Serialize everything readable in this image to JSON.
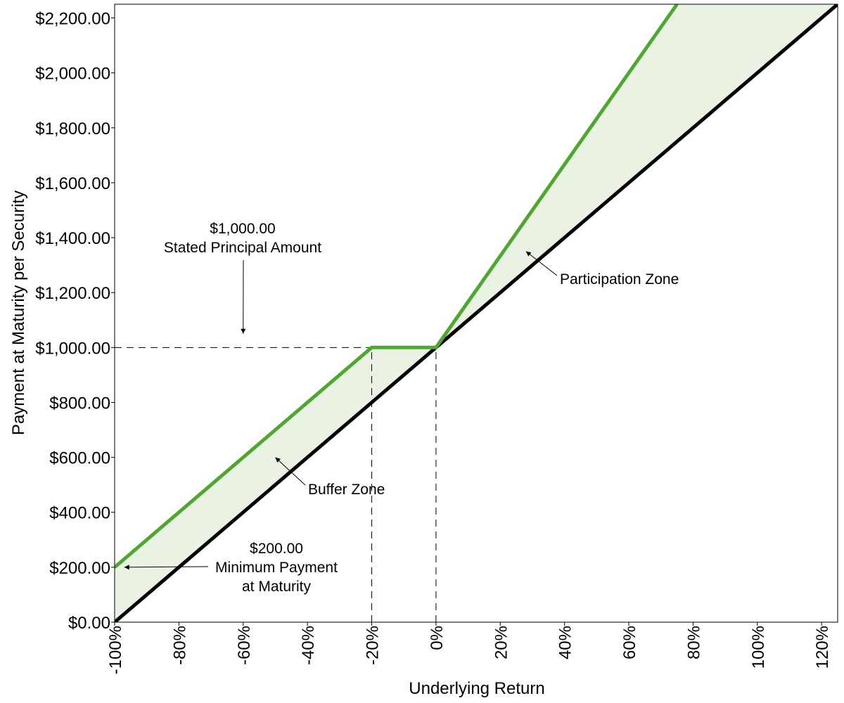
{
  "chart_data": {
    "type": "line",
    "title": "",
    "xlabel": "Underlying Return",
    "ylabel": "Payment at Maturity per Security",
    "xlim": [
      -100,
      125
    ],
    "ylim": [
      0,
      2250
    ],
    "x_ticks": [
      -100,
      -80,
      -60,
      -40,
      -20,
      0,
      20,
      40,
      60,
      80,
      100,
      120
    ],
    "x_tick_labels": [
      "-100%",
      "-80%",
      "-60%",
      "-40%",
      "-20%",
      "0%",
      "20%",
      "40%",
      "60%",
      "80%",
      "100%",
      "120%"
    ],
    "y_ticks": [
      0,
      200,
      400,
      600,
      800,
      1000,
      1200,
      1400,
      1600,
      1800,
      2000,
      2200
    ],
    "y_tick_labels": [
      "$0.00",
      "$200.00",
      "$400.00",
      "$600.00",
      "$800.00",
      "$1,000.00",
      "$1,200.00",
      "$1,400.00",
      "$1,600.00",
      "$1,800.00",
      "$2,000.00",
      "$2,200.00"
    ],
    "grid": false,
    "legend": "none",
    "series": [
      {
        "key": "security",
        "color": "#4ea72e",
        "x": [
          -100,
          -20,
          0,
          75
        ],
        "y": [
          200,
          1000,
          1000,
          2250
        ]
      },
      {
        "key": "underlying",
        "color": "#000000",
        "x": [
          -100,
          125
        ],
        "y": [
          0,
          2250
        ]
      }
    ],
    "fill_color": "#eaf3e3",
    "reference_lines": [
      {
        "from": [
          -100,
          1000
        ],
        "to": [
          0,
          1000
        ],
        "style": "dashed"
      },
      {
        "from": [
          -20,
          0
        ],
        "to": [
          -20,
          1000
        ],
        "style": "dashed"
      },
      {
        "from": [
          0,
          0
        ],
        "to": [
          0,
          1000
        ],
        "style": "dashed"
      }
    ],
    "annotations": [
      {
        "key": "principal",
        "lines": [
          "$1,000.00",
          "Stated Principal Amount"
        ],
        "arrow_to": [
          -60,
          1050
        ]
      },
      {
        "key": "participation",
        "lines": [
          "Participation Zone"
        ],
        "arrow_to": [
          28,
          1350
        ]
      },
      {
        "key": "buffer",
        "lines": [
          "Buffer Zone"
        ],
        "arrow_to": [
          -50,
          600
        ]
      },
      {
        "key": "minimum",
        "lines": [
          "$200.00",
          "Minimum Payment",
          "at Maturity"
        ],
        "arrow_to": [
          -97,
          200
        ]
      }
    ]
  }
}
